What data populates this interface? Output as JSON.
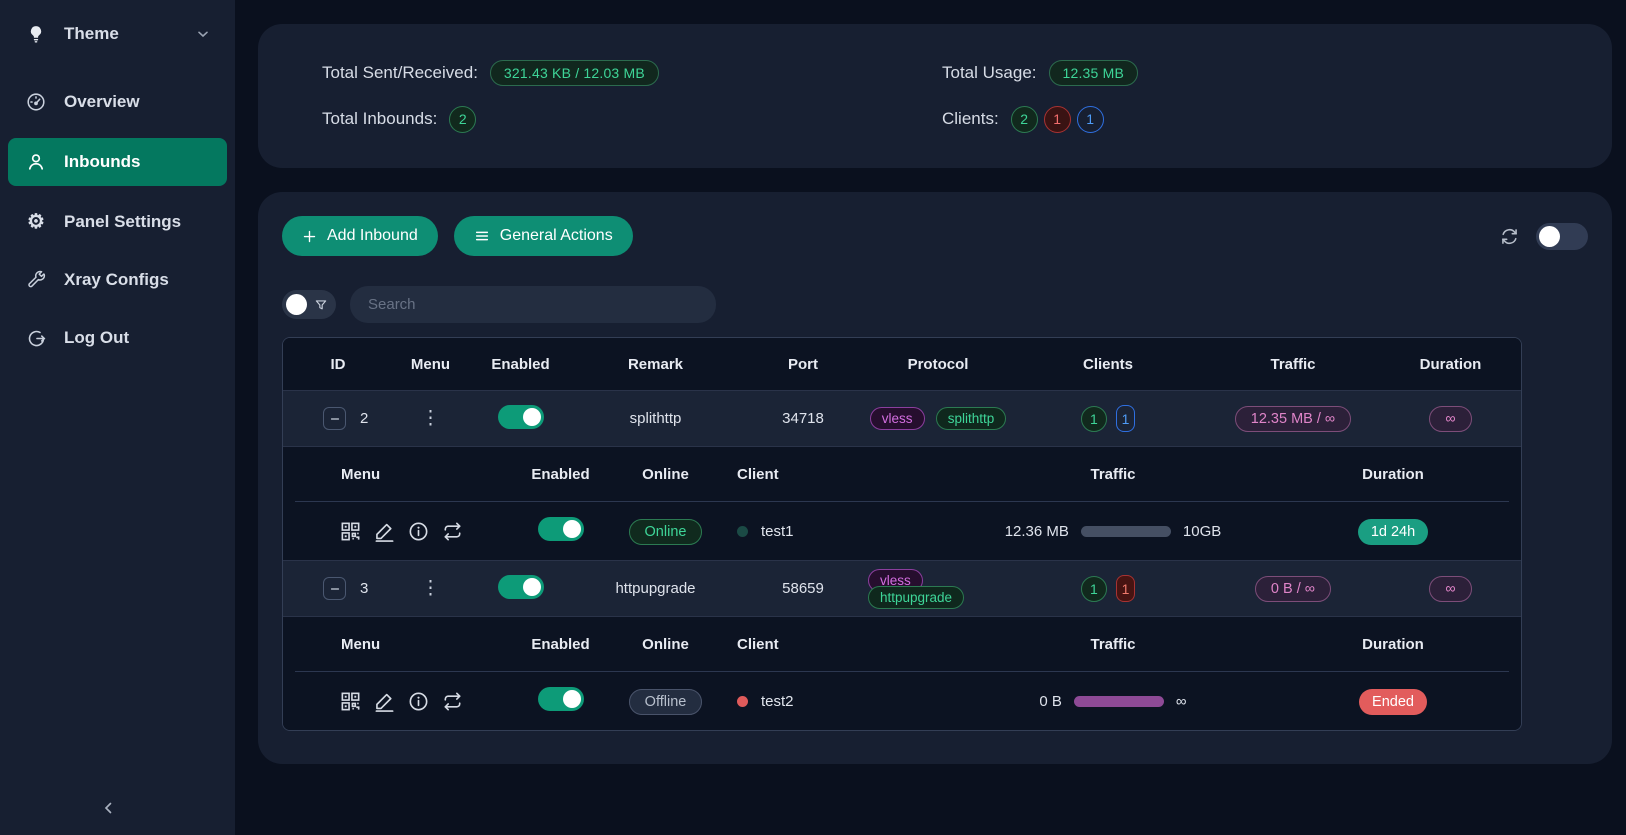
{
  "colors": {
    "page_bg": "#0a101e",
    "panel_bg": "#171f31",
    "table_dark": "#0c1322",
    "row_bg": "#1b2436",
    "accent": "#0e8e74",
    "sidebar_active": "#04785f",
    "toggle_on": "#0d9b78",
    "green_text": "#3ed598",
    "pink_text": "#df84c8",
    "badge_teal": "#1a9e82",
    "badge_red": "#e25c5c"
  },
  "sidebar": {
    "theme_label": "Theme",
    "items": [
      {
        "label": "Overview"
      },
      {
        "label": "Inbounds",
        "active": true
      },
      {
        "label": "Panel Settings"
      },
      {
        "label": "Xray Configs"
      },
      {
        "label": "Log Out"
      }
    ]
  },
  "stats": {
    "sent_received_label": "Total Sent/Received:",
    "sent_received_value": "321.43 KB / 12.03 MB",
    "total_inbounds_label": "Total Inbounds:",
    "total_inbounds_value": "2",
    "total_usage_label": "Total Usage:",
    "total_usage_value": "12.35 MB",
    "clients_label": "Clients:",
    "clients": [
      {
        "value": "2",
        "style": "green"
      },
      {
        "value": "1",
        "style": "red"
      },
      {
        "value": "1",
        "style": "blue"
      }
    ]
  },
  "toolbar": {
    "add_inbound_label": "Add Inbound",
    "general_actions_label": "General Actions"
  },
  "search": {
    "placeholder": "Search"
  },
  "table": {
    "headers": [
      "ID",
      "Menu",
      "Enabled",
      "Remark",
      "Port",
      "Protocol",
      "Clients",
      "Traffic",
      "Duration"
    ],
    "sub_headers": [
      "Menu",
      "Enabled",
      "Online",
      "Client",
      "Traffic",
      "Duration"
    ],
    "inbounds": [
      {
        "id": "2",
        "enabled": true,
        "remark": "splithttp",
        "port": "34718",
        "protocol": "vless",
        "transport": "splithttp",
        "clients_total": "1",
        "clients_second": {
          "value": "1",
          "color": "blue"
        },
        "traffic": "12.35 MB / ∞",
        "duration": "∞",
        "client_row": {
          "enabled": true,
          "status": "Online",
          "status_state": "online",
          "dot_color": "#1b4a45",
          "name": "test1",
          "traffic_used": "12.36 MB",
          "traffic_total": "10GB",
          "bar_color": "#454f63",
          "duration": "1d 24h",
          "duration_state": "active"
        }
      },
      {
        "id": "3",
        "enabled": true,
        "remark": "httpupgrade",
        "port": "58659",
        "protocol": "vless",
        "transport": "httpupgrade",
        "clients_total": "1",
        "clients_second": {
          "value": "1",
          "color": "red"
        },
        "traffic": "0 B / ∞",
        "duration": "∞",
        "client_row": {
          "enabled": true,
          "status": "Offline",
          "status_state": "offline",
          "dot_color": "#e05b5b",
          "name": "test2",
          "traffic_used": "0 B",
          "traffic_total": "∞",
          "bar_color": "#8e4a96",
          "duration": "Ended",
          "duration_state": "ended"
        }
      }
    ]
  }
}
